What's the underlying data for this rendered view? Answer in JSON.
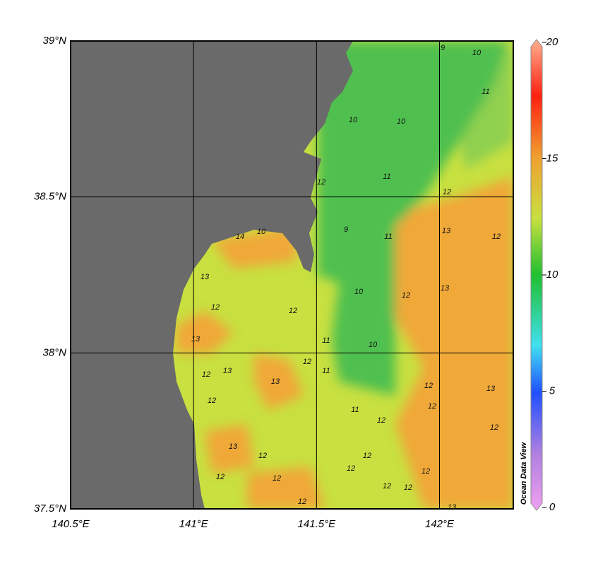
{
  "map": {
    "xlim": [
      140.5,
      142.3
    ],
    "ylim": [
      37.5,
      39
    ],
    "xticks": [
      {
        "value": 140.5,
        "label": "140.5°E"
      },
      {
        "value": 141,
        "label": "141°E"
      },
      {
        "value": 141.5,
        "label": "141.5°E"
      },
      {
        "value": 142,
        "label": "142°E"
      }
    ],
    "yticks": [
      {
        "value": 37.5,
        "label": "37.5°N"
      },
      {
        "value": 38,
        "label": "38°N"
      },
      {
        "value": 38.5,
        "label": "38.5°N"
      },
      {
        "value": 39,
        "label": "39°N"
      }
    ],
    "grid": true,
    "contour_labels": [
      9,
      10,
      11,
      10,
      10,
      11,
      12,
      12,
      9,
      13,
      12,
      11,
      13,
      10,
      12,
      10,
      11,
      11,
      12,
      13,
      12,
      12,
      13,
      13,
      12,
      13,
      12,
      12,
      13,
      11,
      12,
      12,
      12,
      13,
      12,
      12,
      12,
      12,
      12,
      12,
      12,
      12,
      12,
      13,
      10,
      14
    ]
  },
  "colorbar": {
    "lim": [
      0,
      20
    ],
    "ticks": [
      0,
      5,
      10,
      15,
      20
    ],
    "credit": "Ocean Data View"
  }
}
